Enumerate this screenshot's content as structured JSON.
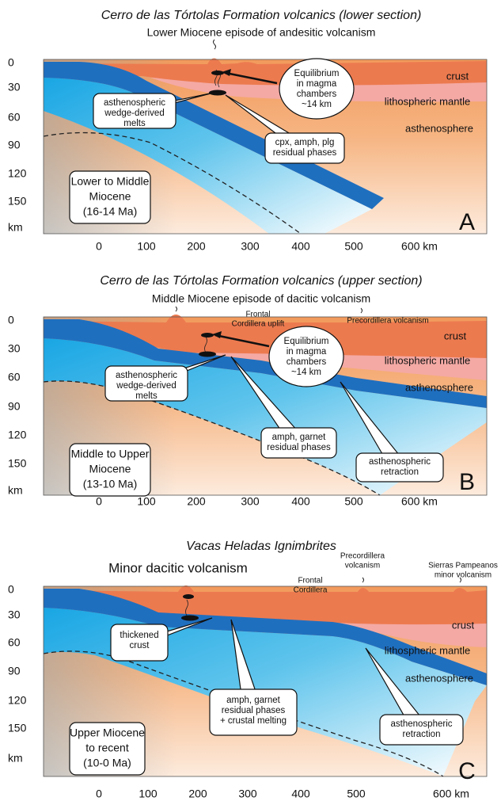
{
  "panels": [
    {
      "letter": "A",
      "title": "Cerro de las Tórtolas Formation volcanics (lower section)",
      "subtitle": "Lower Miocene episode of andesitic volcanism",
      "layers": [
        "crust",
        "lithospheric mantle",
        "asthenosphere"
      ],
      "annotations": [],
      "callouts": [
        [
          "Equilibrium",
          "in magma",
          "chambers",
          "~14 km"
        ],
        [
          "asthenospheric",
          "wedge-derived",
          "melts"
        ],
        [
          "cpx, amph, plg",
          "residual phases"
        ]
      ],
      "age": [
        "Lower to Middle",
        "Miocene",
        "(16-14 Ma)"
      ],
      "y_axis": [
        "0",
        "30",
        "60",
        "90",
        "120",
        "150",
        "km"
      ],
      "x_axis": [
        "0",
        "100",
        "200",
        "300",
        "400",
        "500",
        "600 km"
      ]
    },
    {
      "letter": "B",
      "title": "Cerro de las Tórtolas Formation volcanics (upper section)",
      "subtitle": "Middle Miocene episode of dacitic volcanism",
      "layers": [
        "crust",
        "lithospheric mantle",
        "asthenosphere"
      ],
      "annotations": [
        [
          "Frontal",
          "Cordillera uplift"
        ],
        [
          "Precordillera volcanism"
        ]
      ],
      "callouts": [
        [
          "Equilibrium",
          "in magma",
          "chambers",
          "~14 km"
        ],
        [
          "asthenospheric",
          "wedge-derived",
          "melts"
        ],
        [
          "amph, garnet",
          "residual phases"
        ],
        [
          "asthenospheric",
          "retraction"
        ]
      ],
      "age": [
        "Middle to Upper",
        "Miocene",
        "(13-10 Ma)"
      ],
      "y_axis": [
        "0",
        "30",
        "60",
        "90",
        "120",
        "150",
        "km"
      ],
      "x_axis": [
        "0",
        "100",
        "200",
        "300",
        "400",
        "500",
        "600 km"
      ]
    },
    {
      "letter": "C",
      "title": "Vacas Heladas Ignimbrites",
      "subtitle": "Minor dacitic volcanism",
      "layers": [
        "crust",
        "lithospheric mantle",
        "asthenosphere"
      ],
      "annotations": [
        [
          "Frontal",
          "Cordillera"
        ],
        [
          "Precordillera",
          "volcanism"
        ],
        [
          "Sierras Pampeanos",
          "minor volcanism"
        ]
      ],
      "callouts": [
        [
          "thickened",
          "crust"
        ],
        [
          "amph, garnet",
          "residual phases",
          "+ crustal melting"
        ],
        [
          "asthenospheric",
          "retraction"
        ]
      ],
      "age": [
        "Upper Miocene",
        "to recent",
        "(10-0 Ma)"
      ],
      "y_axis": [
        "0",
        "30",
        "60",
        "90",
        "120",
        "150",
        "km"
      ],
      "x_axis": [
        "0",
        "100",
        "200",
        "300",
        "400",
        "500",
        "600 km"
      ]
    }
  ]
}
